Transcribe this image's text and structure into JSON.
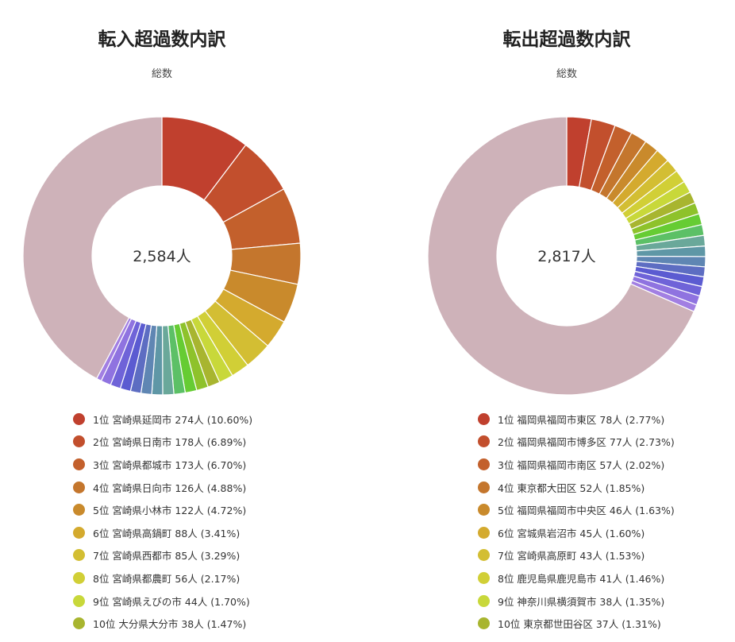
{
  "chart_data": [
    {
      "type": "pie",
      "title": "転入超過数内訳",
      "subtitle": "総数",
      "center_label": "2,584人",
      "colors": [
        "#c0402e",
        "#c24f2d",
        "#c3602c",
        "#c4762d",
        "#c98a2c",
        "#d4aa2e",
        "#d3be33",
        "#d1cf36",
        "#c8d83a",
        "#a8b52f",
        "#8ec22b",
        "#66cc33",
        "#5cc066",
        "#6aa89a",
        "#5f97a6",
        "#5f86b3",
        "#5d6dc2",
        "#5b5bd1",
        "#6f63d8",
        "#8f73e0",
        "#a27fe2",
        "#b68ae3",
        "#c997e3",
        "#d086c9",
        "#d0879a",
        "#ceb2b9"
      ],
      "segments": [
        {
          "label": "1位 宮崎県延岡市 274人 (10.60%)",
          "value": 10.6
        },
        {
          "label": "2位 宮崎県日南市 178人 (6.89%)",
          "value": 6.89
        },
        {
          "label": "3位 宮崎県都城市 173人 (6.70%)",
          "value": 6.7
        },
        {
          "label": "4位 宮崎県日向市 126人 (4.88%)",
          "value": 4.88
        },
        {
          "label": "5位 宮崎県小林市 122人 (4.72%)",
          "value": 4.72
        },
        {
          "label": "6位 宮崎県高鍋町 88人 (3.41%)",
          "value": 3.41
        },
        {
          "label": "7位 宮崎県西都市 85人 (3.29%)",
          "value": 3.29
        },
        {
          "label": "8位 宮崎県都農町 56人 (2.17%)",
          "value": 2.17
        },
        {
          "label": "9位 宮崎県えびの市 44人 (1.70%)",
          "value": 1.7
        },
        {
          "label": "10位 大分県大分市 38人 (1.47%)",
          "value": 1.47
        },
        {
          "label": "",
          "value": 1.4
        },
        {
          "label": "",
          "value": 1.38
        },
        {
          "label": "",
          "value": 1.35
        },
        {
          "label": "",
          "value": 1.32
        },
        {
          "label": "",
          "value": 1.3
        },
        {
          "label": "",
          "value": 1.28
        },
        {
          "label": "",
          "value": 1.26
        },
        {
          "label": "",
          "value": 1.24
        },
        {
          "label": "",
          "value": 1.22
        },
        {
          "label": "",
          "value": 1.2
        },
        {
          "label": "",
          "value": 0.6
        },
        {
          "label": "",
          "value": 43.37
        }
      ]
    },
    {
      "type": "pie",
      "title": "転出超過数内訳",
      "subtitle": "総数",
      "center_label": "2,817人",
      "colors": [
        "#c0402e",
        "#c24f2d",
        "#c3602c",
        "#c4762d",
        "#c98a2c",
        "#d4aa2e",
        "#d3be33",
        "#d1cf36",
        "#c8d83a",
        "#a8b52f",
        "#8ec22b",
        "#66cc33",
        "#5cc066",
        "#6aa89a",
        "#5f97a6",
        "#5f86b3",
        "#5d6dc2",
        "#5b5bd1",
        "#6f63d8",
        "#8f73e0",
        "#a27fe2",
        "#b68ae3",
        "#c997e3",
        "#d086c9",
        "#d0879a",
        "#ceb2b9"
      ],
      "segments": [
        {
          "label": "1位 福岡県福岡市東区 78人 (2.77%)",
          "value": 2.77
        },
        {
          "label": "2位 福岡県福岡市博多区 77人 (2.73%)",
          "value": 2.73
        },
        {
          "label": "3位 福岡県福岡市南区 57人 (2.02%)",
          "value": 2.02
        },
        {
          "label": "4位 東京都大田区 52人 (1.85%)",
          "value": 1.85
        },
        {
          "label": "5位 福岡県福岡市中央区 46人 (1.63%)",
          "value": 1.63
        },
        {
          "label": "6位 宮城県岩沼市 45人 (1.60%)",
          "value": 1.6
        },
        {
          "label": "7位 宮崎県高原町 43人 (1.53%)",
          "value": 1.53
        },
        {
          "label": "8位 鹿児島県鹿児島市 41人 (1.46%)",
          "value": 1.46
        },
        {
          "label": "9位 神奈川県横須賀市 38人 (1.35%)",
          "value": 1.35
        },
        {
          "label": "10位 東京都世田谷区 37人 (1.31%)",
          "value": 1.31
        },
        {
          "label": "",
          "value": 1.28
        },
        {
          "label": "",
          "value": 1.25
        },
        {
          "label": "",
          "value": 1.22
        },
        {
          "label": "",
          "value": 1.2
        },
        {
          "label": "",
          "value": 1.18
        },
        {
          "label": "",
          "value": 1.15
        },
        {
          "label": "",
          "value": 1.12
        },
        {
          "label": "",
          "value": 1.1
        },
        {
          "label": "",
          "value": 1.08
        },
        {
          "label": "",
          "value": 1.05
        },
        {
          "label": "",
          "value": 0.8
        },
        {
          "label": "",
          "value": 66.51
        }
      ]
    }
  ]
}
